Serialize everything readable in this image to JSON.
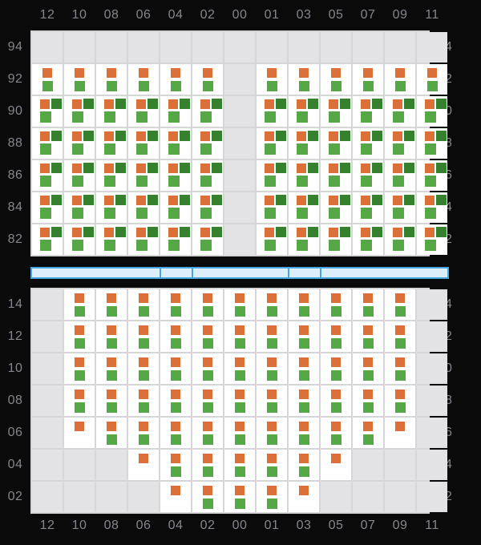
{
  "columns": [
    "12",
    "10",
    "08",
    "06",
    "04",
    "02",
    "00",
    "01",
    "03",
    "05",
    "07",
    "09",
    "11"
  ],
  "upper_grid": {
    "row_labels": [
      "94",
      "92",
      "90",
      "88",
      "86",
      "84",
      "82"
    ],
    "cells": [
      ".............",
      "PPPPPP.PPPPPP",
      "TTTTTT.TTTTTT",
      "TTTTTT.TTTTTT",
      "TTTTTT.TTTTTT",
      "TTTTTT.TTTTTT",
      "TTTTTT.TTTTTT"
    ]
  },
  "lower_grid": {
    "row_labels": [
      "14",
      "12",
      "10",
      "08",
      "06",
      "04",
      "02"
    ],
    "cells": [
      ".PPPPPPPPPPP.",
      ".PPPPPPPPPPP.",
      ".PPPPPPPPPPP.",
      ".PPPPPPPPPPP.",
      ".OPPPPPPPPPO.",
      "...OPPPPPO...",
      "....OPPPO...."
    ]
  },
  "cell_type_legend": {
    ".": "empty",
    "P": "orange-over-green-pair",
    "T": "orange-darkgreen-lightgreen-triple",
    "O": "orange-only"
  },
  "walkway": {
    "segment_widths_in_columns": [
      4,
      1,
      3,
      1,
      4
    ]
  },
  "colors": {
    "orange": "#DD7038",
    "dark_green": "#36812E",
    "light_green": "#56A746",
    "empty_cell": "#E3E3E6",
    "active_cell": "#FFFFFF",
    "grid_line": "#D6D6D9",
    "axis_label": "#86868E",
    "background": "#0A0A0B",
    "walkway_fill": "#DCEEFA",
    "walkway_border": "#45A7DE"
  }
}
